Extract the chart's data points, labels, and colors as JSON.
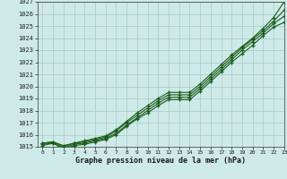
{
  "xlabel": "Graphe pression niveau de la mer (hPa)",
  "xlim": [
    -0.5,
    23
  ],
  "ylim": [
    1015,
    1027
  ],
  "yticks": [
    1015,
    1016,
    1017,
    1018,
    1019,
    1020,
    1021,
    1022,
    1023,
    1024,
    1025,
    1026,
    1027
  ],
  "xticks": [
    0,
    1,
    2,
    3,
    4,
    5,
    6,
    7,
    8,
    9,
    10,
    11,
    12,
    13,
    14,
    15,
    16,
    17,
    18,
    19,
    20,
    21,
    22,
    23
  ],
  "background_color": "#ceeae8",
  "grid_color": "#aacfcc",
  "line_color": "#1a5c1a",
  "series": [
    [
      1015.3,
      1015.4,
      1015.1,
      1015.3,
      1015.5,
      1015.7,
      1015.9,
      1016.4,
      1017.1,
      1017.8,
      1018.4,
      1019.0,
      1019.5,
      1019.5,
      1019.5,
      1020.2,
      1021.0,
      1021.8,
      1022.6,
      1023.3,
      1024.0,
      1024.8,
      1025.7,
      1027.0
    ],
    [
      1015.3,
      1015.4,
      1015.0,
      1015.3,
      1015.4,
      1015.6,
      1015.8,
      1016.3,
      1017.0,
      1017.6,
      1018.2,
      1018.8,
      1019.3,
      1019.3,
      1019.3,
      1020.0,
      1020.8,
      1021.6,
      1022.4,
      1023.2,
      1023.9,
      1024.6,
      1025.4,
      1026.3
    ],
    [
      1015.2,
      1015.3,
      1014.9,
      1015.2,
      1015.3,
      1015.5,
      1015.7,
      1016.1,
      1016.8,
      1017.4,
      1018.0,
      1018.6,
      1019.1,
      1019.1,
      1019.1,
      1019.8,
      1020.6,
      1021.4,
      1022.2,
      1023.0,
      1023.7,
      1024.4,
      1025.2,
      1025.8
    ],
    [
      1015.1,
      1015.3,
      1014.8,
      1015.1,
      1015.2,
      1015.4,
      1015.6,
      1016.0,
      1016.7,
      1017.3,
      1017.8,
      1018.4,
      1018.9,
      1018.9,
      1018.9,
      1019.6,
      1020.4,
      1021.2,
      1022.0,
      1022.7,
      1023.4,
      1024.2,
      1024.9,
      1025.3
    ]
  ]
}
